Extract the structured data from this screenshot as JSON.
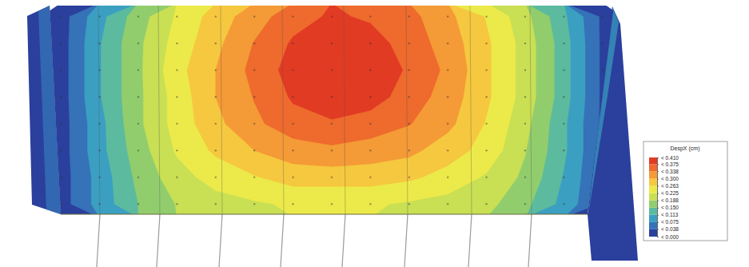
{
  "chart_data": {
    "type": "contour",
    "tick_labels": false,
    "z": [
      [
        0.02,
        0.1,
        0.17,
        0.23,
        0.28,
        0.32,
        0.36,
        0.38,
        0.37,
        0.35,
        0.31,
        0.26,
        0.2,
        0.12,
        0.03
      ],
      [
        0.02,
        0.11,
        0.18,
        0.24,
        0.29,
        0.34,
        0.38,
        0.4,
        0.39,
        0.36,
        0.32,
        0.27,
        0.21,
        0.13,
        0.03
      ],
      [
        0.02,
        0.11,
        0.18,
        0.25,
        0.3,
        0.35,
        0.39,
        0.41,
        0.4,
        0.37,
        0.33,
        0.27,
        0.21,
        0.13,
        0.03
      ],
      [
        0.02,
        0.11,
        0.18,
        0.24,
        0.3,
        0.34,
        0.38,
        0.4,
        0.39,
        0.36,
        0.32,
        0.27,
        0.21,
        0.13,
        0.03
      ],
      [
        0.02,
        0.1,
        0.18,
        0.24,
        0.29,
        0.33,
        0.36,
        0.37,
        0.36,
        0.34,
        0.31,
        0.26,
        0.2,
        0.12,
        0.03
      ],
      [
        0.02,
        0.1,
        0.17,
        0.23,
        0.27,
        0.3,
        0.32,
        0.33,
        0.32,
        0.31,
        0.28,
        0.25,
        0.19,
        0.12,
        0.03
      ],
      [
        0.02,
        0.09,
        0.16,
        0.21,
        0.24,
        0.26,
        0.28,
        0.28,
        0.28,
        0.27,
        0.25,
        0.22,
        0.18,
        0.11,
        0.03
      ],
      [
        0.02,
        0.09,
        0.15,
        0.19,
        0.21,
        0.22,
        0.23,
        0.23,
        0.23,
        0.22,
        0.21,
        0.2,
        0.16,
        0.1,
        0.03
      ]
    ],
    "colorbar": {
      "title": "DespX (cm)",
      "range": [
        0,
        0.41
      ],
      "ticks": [
        {
          "value": 0,
          "label": "< 0.000"
        },
        {
          "value": 0.038,
          "label": "< 0.038"
        },
        {
          "value": 0.075,
          "label": "< 0.075"
        },
        {
          "value": 0.113,
          "label": "< 0.113"
        },
        {
          "value": 0.15,
          "label": "< 0.150"
        },
        {
          "value": 0.188,
          "label": "< 0.188"
        },
        {
          "value": 0.225,
          "label": "< 0.225"
        },
        {
          "value": 0.263,
          "label": "< 0.263"
        },
        {
          "value": 0.3,
          "label": "< 0.300"
        },
        {
          "value": 0.338,
          "label": "< 0.338"
        },
        {
          "value": 0.375,
          "label": "< 0.375"
        },
        {
          "value": 0.41,
          "label": "< 0.410"
        }
      ],
      "colors": [
        "#2b3f9c",
        "#3572b8",
        "#3b9fc2",
        "#5cbb9e",
        "#92cd6d",
        "#c9df54",
        "#ecea4a",
        "#f6c83f",
        "#f49a36",
        "#ee6a2d",
        "#e13b24"
      ]
    }
  }
}
